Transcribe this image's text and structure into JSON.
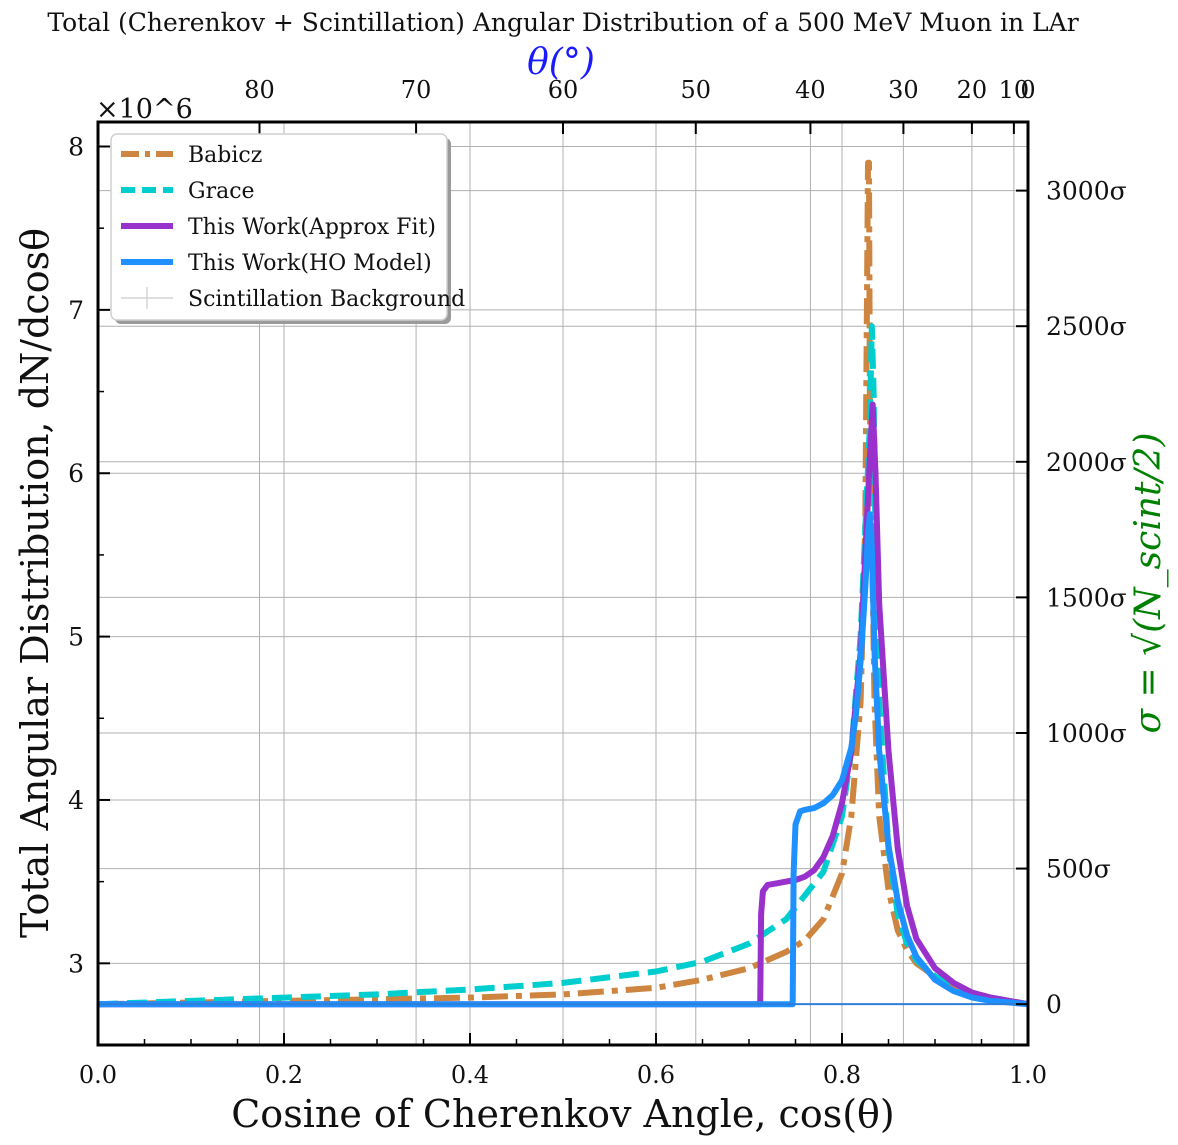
{
  "chart_data": {
    "type": "line",
    "title": "Total (Cherenkov + Scintillation) Angular Distribution of a 500 MeV Muon in LAr",
    "xlabel": "Cosine of Cherenkov Angle, cos(θ)",
    "ylabel": "Total Angular Distribution, dN/dcosθ",
    "top_xlabel": "θ(°)",
    "right_ylabel": "σ = √(N_scint/2)",
    "y_multiplier": "×10^6",
    "xlim": [
      0.0,
      1.0
    ],
    "ylim": [
      2.5,
      8.15
    ],
    "x_ticks": [
      0.0,
      0.2,
      0.4,
      0.6,
      0.8,
      1.0
    ],
    "x_tick_labels": [
      "0.0",
      "0.2",
      "0.4",
      "0.6",
      "0.8",
      "1.0"
    ],
    "y_ticks": [
      3,
      4,
      5,
      6,
      7,
      8
    ],
    "y_tick_labels": [
      "3",
      "4",
      "5",
      "6",
      "7",
      "8"
    ],
    "top_ticks_deg": [
      80,
      70,
      60,
      50,
      40,
      30,
      20,
      10,
      0
    ],
    "top_tick_labels": [
      "80",
      "70",
      "60",
      "50",
      "40",
      "30",
      "20",
      "10",
      "0"
    ],
    "right_ticks_sigma": [
      0,
      500,
      1000,
      1500,
      2000,
      2500,
      3000
    ],
    "right_tick_labels": [
      "0",
      "500σ",
      "1000σ",
      "1500σ",
      "2000σ",
      "2500σ",
      "3000σ"
    ],
    "sigma_baseline": 2.75,
    "sigma_unit": 0.00166,
    "grid": true,
    "legend_position": "top-left",
    "series": [
      {
        "name": "Babicz",
        "color": "#cd853f",
        "style": "dashdot",
        "x": [
          0.0,
          0.1,
          0.2,
          0.3,
          0.4,
          0.5,
          0.6,
          0.65,
          0.7,
          0.74,
          0.76,
          0.78,
          0.8,
          0.81,
          0.82,
          0.825,
          0.828,
          0.829,
          0.83,
          0.835,
          0.84,
          0.85,
          0.86,
          0.87,
          0.88,
          0.9,
          0.92,
          0.94,
          0.96,
          0.98,
          1.0
        ],
        "y": [
          2.75,
          2.76,
          2.77,
          2.78,
          2.79,
          2.81,
          2.85,
          2.9,
          2.97,
          3.07,
          3.14,
          3.27,
          3.55,
          3.9,
          4.6,
          5.7,
          7.9,
          7.9,
          6.4,
          4.6,
          3.9,
          3.45,
          3.2,
          3.08,
          3.0,
          2.92,
          2.87,
          2.82,
          2.79,
          2.77,
          2.75
        ]
      },
      {
        "name": "Grace",
        "color": "#00cdcd",
        "style": "dashed",
        "x": [
          0.0,
          0.1,
          0.2,
          0.3,
          0.4,
          0.5,
          0.6,
          0.65,
          0.7,
          0.74,
          0.78,
          0.8,
          0.81,
          0.82,
          0.83,
          0.832,
          0.834,
          0.836,
          0.84,
          0.85,
          0.86,
          0.87,
          0.88,
          0.9,
          0.92,
          0.94,
          0.96,
          0.98,
          1.0
        ],
        "y": [
          2.75,
          2.77,
          2.79,
          2.81,
          2.84,
          2.88,
          2.95,
          3.01,
          3.12,
          3.27,
          3.56,
          3.9,
          4.3,
          5.0,
          6.3,
          6.9,
          6.5,
          5.6,
          4.6,
          3.7,
          3.3,
          3.12,
          3.02,
          2.92,
          2.86,
          2.82,
          2.79,
          2.77,
          2.75
        ]
      },
      {
        "name": "This Work(Approx Fit)",
        "color": "#9932cc",
        "style": "solid",
        "x": [
          0.0,
          0.5,
          0.712,
          0.713,
          0.715,
          0.72,
          0.73,
          0.74,
          0.75,
          0.76,
          0.77,
          0.78,
          0.79,
          0.8,
          0.81,
          0.82,
          0.825,
          0.83,
          0.833,
          0.836,
          0.84,
          0.85,
          0.86,
          0.87,
          0.88,
          0.9,
          0.92,
          0.94,
          0.96,
          0.98,
          1.0
        ],
        "y": [
          2.75,
          2.75,
          2.75,
          3.3,
          3.44,
          3.48,
          3.49,
          3.5,
          3.51,
          3.53,
          3.57,
          3.65,
          3.78,
          3.98,
          4.3,
          4.9,
          5.5,
          6.1,
          6.42,
          6.0,
          5.2,
          4.3,
          3.7,
          3.35,
          3.15,
          2.97,
          2.88,
          2.82,
          2.79,
          2.77,
          2.75
        ]
      },
      {
        "name": "This Work(HO Model)",
        "color": "#1e90ff",
        "style": "solid",
        "x": [
          0.0,
          0.5,
          0.747,
          0.748,
          0.75,
          0.755,
          0.76,
          0.77,
          0.78,
          0.79,
          0.8,
          0.81,
          0.815,
          0.82,
          0.825,
          0.828,
          0.83,
          0.832,
          0.835,
          0.84,
          0.85,
          0.86,
          0.87,
          0.88,
          0.9,
          0.92,
          0.94,
          0.96,
          0.98,
          1.0
        ],
        "y": [
          2.75,
          2.75,
          2.75,
          3.55,
          3.85,
          3.93,
          3.94,
          3.95,
          3.98,
          4.03,
          4.12,
          4.32,
          4.52,
          4.85,
          5.3,
          5.62,
          5.75,
          5.55,
          4.9,
          4.3,
          3.72,
          3.38,
          3.17,
          3.04,
          2.9,
          2.83,
          2.79,
          2.77,
          2.76,
          2.75
        ]
      },
      {
        "name": "Scintillation Background",
        "color": "#cccccc",
        "style": "thin",
        "x": [
          0.0,
          1.0
        ],
        "y": [
          2.75,
          2.75
        ]
      }
    ]
  }
}
